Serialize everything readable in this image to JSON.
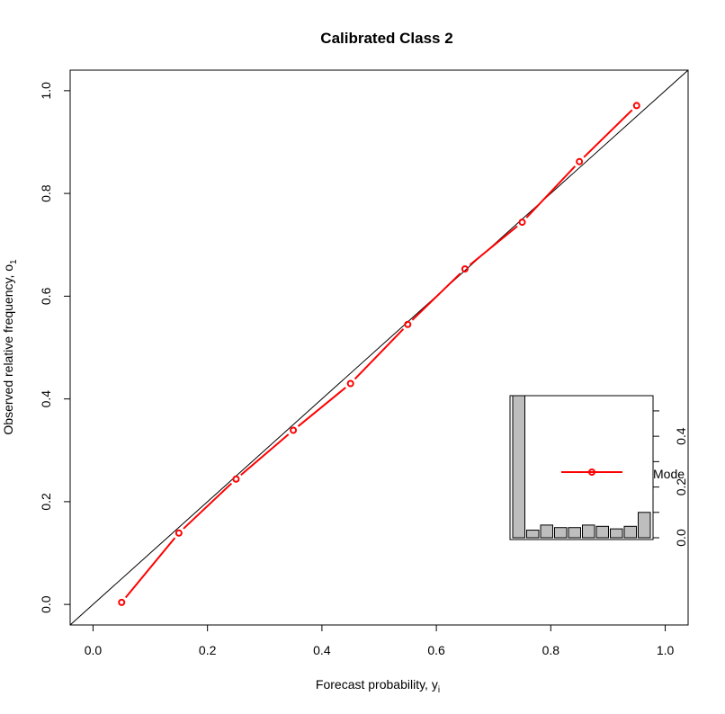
{
  "chart_data": {
    "type": "line",
    "title": "Calibrated Class 2",
    "xlabel_main": "Forecast probability, y",
    "xlabel_sub": "i",
    "ylabel_main": "Observed relative frequency, o",
    "ylabel_sub": "1",
    "xlim": [
      -0.04,
      1.04
    ],
    "ylim": [
      -0.04,
      1.04
    ],
    "x_ticks": [
      "0.0",
      "0.2",
      "0.4",
      "0.6",
      "0.8",
      "1.0"
    ],
    "y_ticks": [
      "0.0",
      "0.2",
      "0.4",
      "0.6",
      "0.8",
      "1.0"
    ],
    "reference_line": "y = x",
    "series": [
      {
        "name": "Model",
        "color": "#ff0000",
        "x": [
          0.05,
          0.15,
          0.25,
          0.35,
          0.45,
          0.55,
          0.65,
          0.75,
          0.85,
          0.95
        ],
        "y": [
          0.004,
          0.139,
          0.244,
          0.339,
          0.43,
          0.545,
          0.653,
          0.744,
          0.862,
          0.971
        ]
      }
    ],
    "legend": {
      "position": "inside inset",
      "label": "Mode"
    },
    "inset_histogram": {
      "bar_color": "#bebebe",
      "bins": [
        0.05,
        0.15,
        0.25,
        0.35,
        0.45,
        0.55,
        0.65,
        0.75,
        0.85,
        0.95
      ],
      "values": [
        0.56,
        0.03,
        0.05,
        0.04,
        0.04,
        0.05,
        0.045,
        0.035,
        0.045,
        0.1
      ],
      "ylim": [
        0,
        0.56
      ],
      "y_ticks": [
        "0.0",
        "0.2",
        "0.4"
      ]
    }
  }
}
